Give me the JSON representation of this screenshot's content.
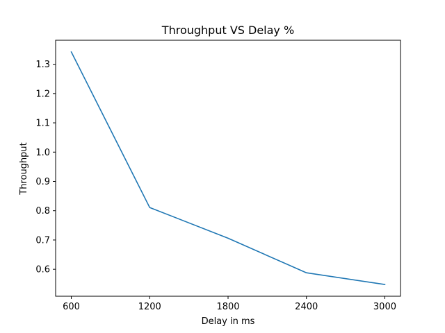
{
  "chart_data": {
    "type": "line",
    "title": "Throughput VS Delay %",
    "xlabel": "Delay in ms",
    "ylabel": "Throughput",
    "x": [
      600,
      1200,
      1800,
      2400,
      3000
    ],
    "series": [
      {
        "values": [
          1.342,
          0.811,
          0.706,
          0.588,
          0.548
        ],
        "color": "#1f77b4"
      }
    ],
    "xticks": [
      "600",
      "1200",
      "1800",
      "2400",
      "3000"
    ],
    "yticks": [
      "0.6",
      "0.7",
      "0.8",
      "0.9",
      "1.0",
      "1.1",
      "1.2",
      "1.3"
    ],
    "xlim": [
      480,
      3120
    ],
    "ylim": [
      0.508,
      1.382
    ],
    "grid": false,
    "legend": false
  }
}
